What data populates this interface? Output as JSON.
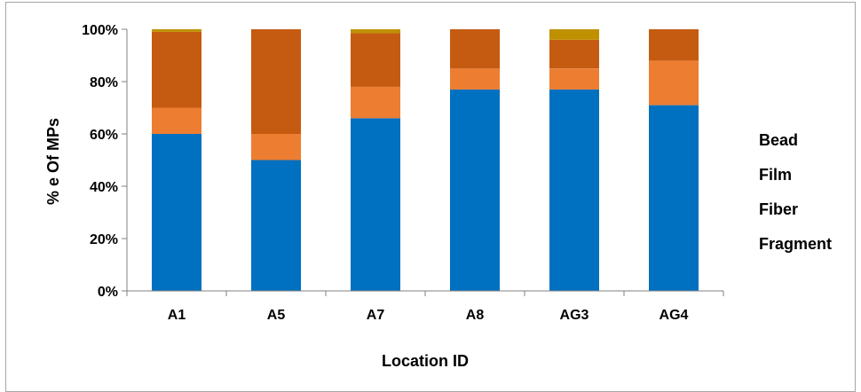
{
  "chart_data": {
    "type": "bar",
    "stacked": true,
    "percent": true,
    "categories": [
      "A1",
      "A5",
      "A7",
      "A8",
      "AG3",
      "AG4"
    ],
    "series": [
      {
        "name": "Fragment",
        "color": "#0070c0",
        "values": [
          60,
          50,
          66,
          77,
          77,
          71
        ]
      },
      {
        "name": "Fiber",
        "color": "#ed7d31",
        "values": [
          10,
          10,
          12,
          8,
          8,
          17
        ]
      },
      {
        "name": "Film",
        "color": "#c55a11",
        "values": [
          29,
          40,
          20.5,
          15,
          11,
          12
        ]
      },
      {
        "name": "Bead",
        "color": "#bf9000",
        "values": [
          1,
          0,
          1.5,
          0,
          4,
          0
        ]
      }
    ],
    "legend": [
      "Bead",
      "Film",
      "Fiber",
      "Fragment"
    ],
    "legend_position": "right",
    "ylim": [
      0,
      100
    ],
    "yticks": [
      "0%",
      "20%",
      "40%",
      "60%",
      "80%",
      "100%"
    ],
    "xlabel": "Location ID",
    "ylabel": "%  e  Of  MPs",
    "grid": false
  }
}
